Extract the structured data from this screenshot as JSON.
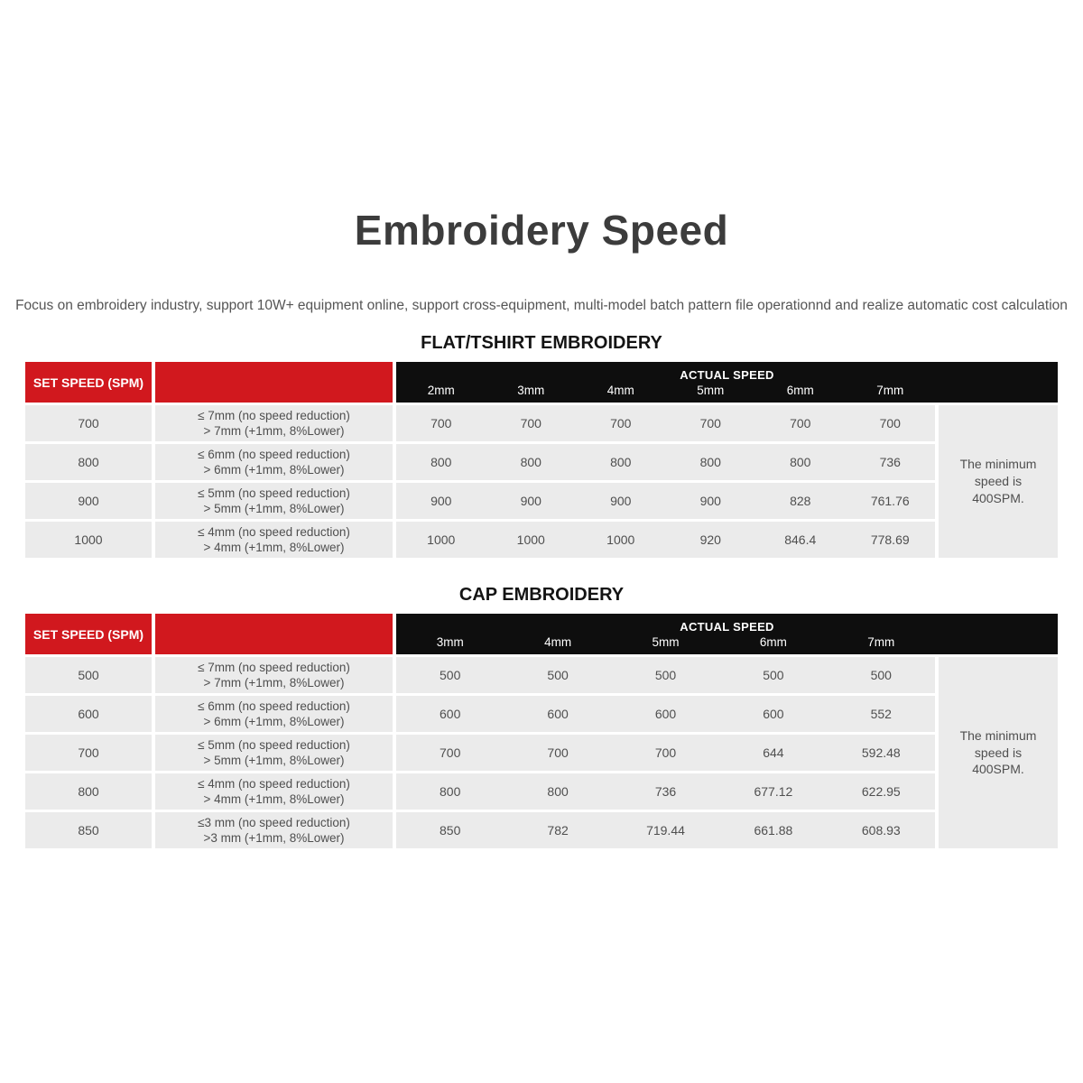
{
  "page": {
    "title": "Embroidery Speed",
    "subtitle": "Focus on embroidery industry, support 10W+ equipment online, support cross-equipment, multi-model batch pattern file operationnd and realize automatic cost calculation"
  },
  "colors": {
    "header_red": "#d1181e",
    "header_black": "#0e0e0e",
    "row_gray": "#ebebeb",
    "body_text": "#4f4f4f",
    "title_text": "#3c3c3c"
  },
  "tables": [
    {
      "title": "FLAT/TSHIRT EMBROIDERY",
      "set_speed_header": "SET SPEED (SPM)",
      "actual_speed_header": "ACTUAL SPEED",
      "mm_columns": [
        "2mm",
        "3mm",
        "4mm",
        "5mm",
        "6mm",
        "7mm"
      ],
      "note": "The minimum speed is 400SPM.",
      "rows": [
        {
          "set_speed": "700",
          "condition_line1": "≤ 7mm (no speed reduction)",
          "condition_line2": "> 7mm (+1mm, 8%Lower)",
          "values": [
            "700",
            "700",
            "700",
            "700",
            "700",
            "700"
          ]
        },
        {
          "set_speed": "800",
          "condition_line1": "≤ 6mm (no speed reduction)",
          "condition_line2": "> 6mm (+1mm, 8%Lower)",
          "values": [
            "800",
            "800",
            "800",
            "800",
            "800",
            "736"
          ]
        },
        {
          "set_speed": "900",
          "condition_line1": "≤ 5mm (no speed reduction)",
          "condition_line2": "> 5mm (+1mm, 8%Lower)",
          "values": [
            "900",
            "900",
            "900",
            "900",
            "828",
            "761.76"
          ]
        },
        {
          "set_speed": "1000",
          "condition_line1": "≤ 4mm (no speed reduction)",
          "condition_line2": "> 4mm (+1mm, 8%Lower)",
          "values": [
            "1000",
            "1000",
            "1000",
            "920",
            "846.4",
            "778.69"
          ]
        }
      ]
    },
    {
      "title": "CAP EMBROIDERY",
      "set_speed_header": "SET SPEED (SPM)",
      "actual_speed_header": "ACTUAL SPEED",
      "mm_columns": [
        "3mm",
        "4mm",
        "5mm",
        "6mm",
        "7mm"
      ],
      "note": "The minimum speed is 400SPM.",
      "rows": [
        {
          "set_speed": "500",
          "condition_line1": "≤ 7mm (no speed reduction)",
          "condition_line2": "> 7mm (+1mm, 8%Lower)",
          "values": [
            "500",
            "500",
            "500",
            "500",
            "500"
          ]
        },
        {
          "set_speed": "600",
          "condition_line1": "≤ 6mm (no speed reduction)",
          "condition_line2": "> 6mm (+1mm, 8%Lower)",
          "values": [
            "600",
            "600",
            "600",
            "600",
            "552"
          ]
        },
        {
          "set_speed": "700",
          "condition_line1": "≤ 5mm (no speed reduction)",
          "condition_line2": "> 5mm (+1mm, 8%Lower)",
          "values": [
            "700",
            "700",
            "700",
            "644",
            "592.48"
          ]
        },
        {
          "set_speed": "800",
          "condition_line1": "≤ 4mm (no speed reduction)",
          "condition_line2": "> 4mm (+1mm, 8%Lower)",
          "values": [
            "800",
            "800",
            "736",
            "677.12",
            "622.95"
          ]
        },
        {
          "set_speed": "850",
          "condition_line1": "≤3 mm (no speed reduction)",
          "condition_line2": ">3 mm (+1mm, 8%Lower)",
          "values": [
            "850",
            "782",
            "719.44",
            "661.88",
            "608.93"
          ]
        }
      ]
    }
  ]
}
